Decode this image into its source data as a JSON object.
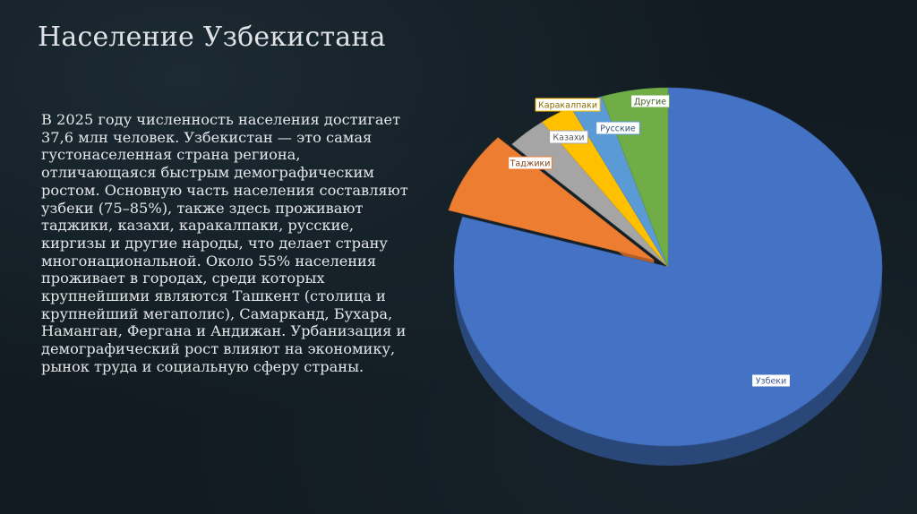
{
  "slide": {
    "title": "Население Узбекистана",
    "body": "В 2025 году численность населения достигает 37,6 млн человек. Узбекистан — это самая густонаселенная страна региона, отличающаяся быстрым демографическим ростом. Основную часть населения составляют узбеки (75–85%), также здесь проживают таджики, казахи, каракалпаки, русские, киргизы и другие народы, что делает страну многонациональной. Около 55% населения проживает в городах, среди которых крупнейшими являются Ташкент (столица и крупнейший мегаполис), Самарканд, Бухара, Наманган, Фергана и Андижан. Урбанизация и демографический рост влияют на экономику, рынок труда и социальную сферу страны."
  },
  "colors": {
    "background": "#111a20",
    "uzbeks": "#4472c4",
    "tajiks": "#ed7d31",
    "kazakhs": "#a5a5a5",
    "karakalpaks": "#ffc000",
    "russians": "#5b9bd5",
    "others": "#70ad47"
  },
  "chart_data": {
    "type": "pie",
    "style": "3d",
    "start_angle_deg": 0,
    "direction": "clockwise",
    "exploded": "Таджики",
    "categories": [
      "Узбеки",
      "Таджики",
      "Казахи",
      "Каракалпаки",
      "Русские",
      "Другие"
    ],
    "values": [
      79.5,
      7.5,
      3.0,
      2.5,
      2.5,
      5.0
    ],
    "labels": [
      "Узбеки",
      "Таджики",
      "Казахи",
      "Каракалпаки",
      "Русские",
      "Другие"
    ],
    "legend": "none",
    "grid": false
  }
}
